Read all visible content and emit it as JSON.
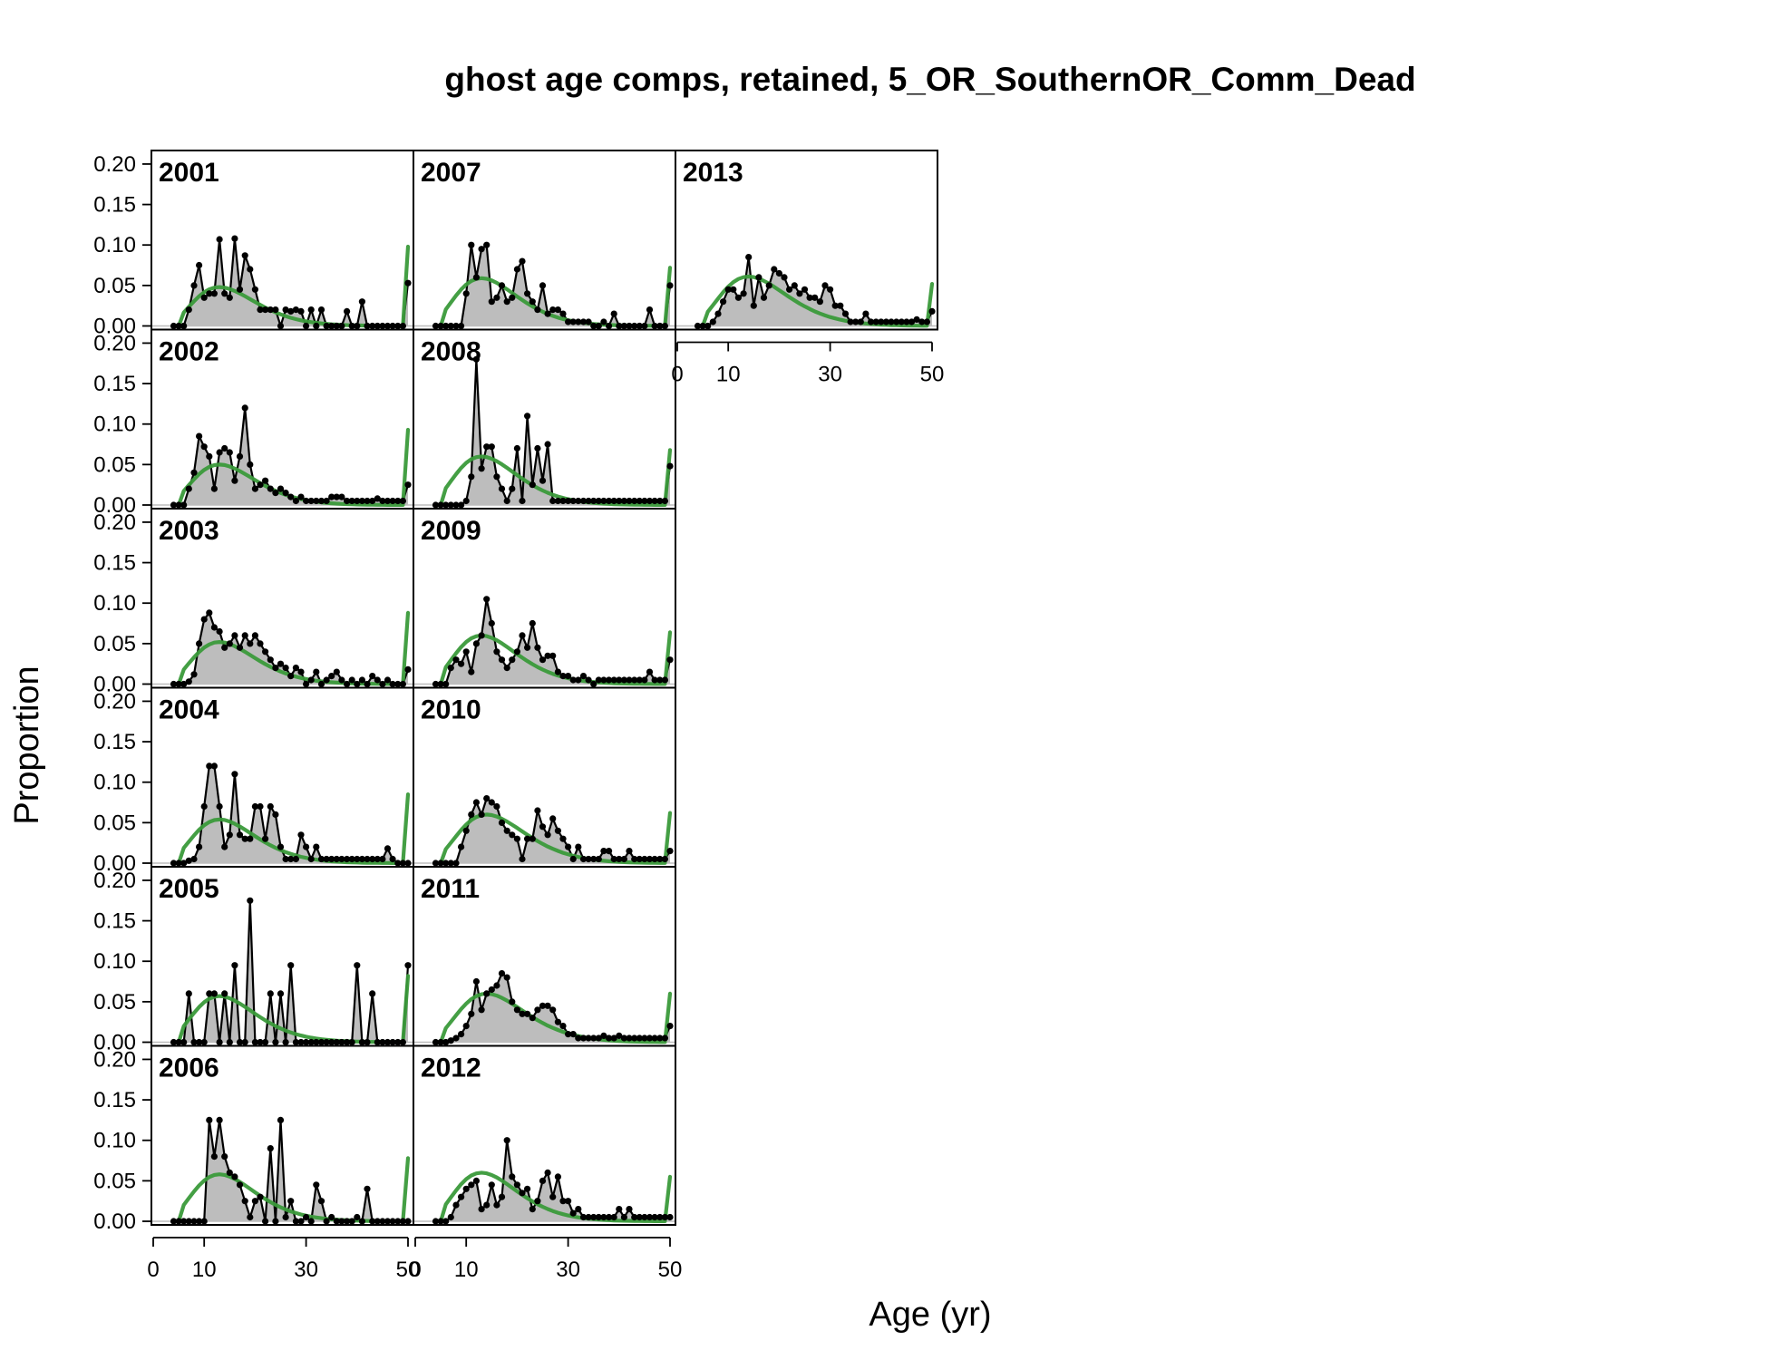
{
  "chart_data": {
    "type": "line",
    "title": "ghost age comps, retained, 5_OR_SouthernOR_Comm_Dead",
    "xlabel": "Age (yr)",
    "ylabel": "Proportion",
    "xlim": [
      0,
      50
    ],
    "ylim": [
      0,
      0.21
    ],
    "x_ticks": [
      0,
      10,
      30,
      50
    ],
    "x_tick_labels": [
      "0",
      "10",
      "30",
      "50"
    ],
    "y_ticks": [
      0,
      0.05,
      0.1,
      0.15,
      0.2
    ],
    "y_tick_labels": [
      "0.00",
      "0.05",
      "0.10",
      "0.15",
      "0.20"
    ],
    "ages": [
      4,
      5,
      6,
      7,
      8,
      9,
      10,
      11,
      12,
      13,
      14,
      15,
      16,
      17,
      18,
      19,
      20,
      21,
      22,
      23,
      24,
      25,
      26,
      27,
      28,
      29,
      30,
      31,
      32,
      33,
      34,
      35,
      36,
      37,
      38,
      39,
      40,
      41,
      42,
      43,
      44,
      45,
      46,
      47,
      48,
      49,
      50
    ],
    "expected_shape": "Fitted (green) curve rises from about age 7, peaks near age 13 then declines toward age 49, with a sharp plus-group spike at age 50.",
    "series_colors": {
      "observed_fill": "#bdbdbd",
      "observed_line": "#000000",
      "expected": "#3a9a3a"
    },
    "panels": [
      {
        "year": "2001",
        "col": 0,
        "row": 0,
        "peak_age": 13,
        "exp_peak": 0.048,
        "exp_plus": 0.098,
        "observed": [
          0,
          0,
          0,
          0.02,
          0.05,
          0.075,
          0.035,
          0.04,
          0.04,
          0.107,
          0.04,
          0.035,
          0.108,
          0.045,
          0.087,
          0.07,
          0.045,
          0.02,
          0.02,
          0.02,
          0.02,
          0,
          0.02,
          0.018,
          0.02,
          0.018,
          0,
          0.02,
          0,
          0.02,
          0,
          0,
          0,
          0,
          0.018,
          0,
          0,
          0.03,
          0,
          0,
          0,
          0,
          0,
          0,
          0,
          0,
          0.053
        ]
      },
      {
        "year": "2002",
        "col": 0,
        "row": 1,
        "peak_age": 13,
        "exp_peak": 0.05,
        "exp_plus": 0.093,
        "observed": [
          0,
          0,
          0,
          0.02,
          0.04,
          0.085,
          0.072,
          0.06,
          0.02,
          0.065,
          0.07,
          0.065,
          0.03,
          0.06,
          0.12,
          0.05,
          0.02,
          0.025,
          0.03,
          0.02,
          0.015,
          0.02,
          0.015,
          0.01,
          0.005,
          0.01,
          0.005,
          0.005,
          0.005,
          0.005,
          0.005,
          0.01,
          0.01,
          0.01,
          0.005,
          0.005,
          0.005,
          0.005,
          0.005,
          0.005,
          0.008,
          0.005,
          0.005,
          0.005,
          0.005,
          0.005,
          0.025
        ]
      },
      {
        "year": "2003",
        "col": 0,
        "row": 2,
        "peak_age": 13,
        "exp_peak": 0.052,
        "exp_plus": 0.088,
        "observed": [
          0,
          0,
          0,
          0.003,
          0.012,
          0.05,
          0.08,
          0.088,
          0.07,
          0.065,
          0.045,
          0.05,
          0.06,
          0.045,
          0.06,
          0.05,
          0.06,
          0.05,
          0.04,
          0.03,
          0.02,
          0.025,
          0.02,
          0.01,
          0.02,
          0.015,
          0,
          0.005,
          0.015,
          0,
          0.005,
          0.01,
          0.015,
          0.005,
          0,
          0.005,
          0,
          0.005,
          0,
          0.01,
          0.005,
          0,
          0.005,
          0,
          0,
          0,
          0.018
        ]
      },
      {
        "year": "2004",
        "col": 0,
        "row": 3,
        "peak_age": 13,
        "exp_peak": 0.054,
        "exp_plus": 0.085,
        "observed": [
          0,
          0,
          0,
          0.003,
          0.005,
          0.02,
          0.07,
          0.12,
          0.12,
          0.07,
          0.02,
          0.035,
          0.11,
          0.035,
          0.03,
          0.03,
          0.07,
          0.07,
          0.03,
          0.07,
          0.06,
          0.02,
          0.005,
          0.005,
          0.005,
          0.035,
          0.02,
          0.005,
          0.02,
          0.005,
          0.005,
          0.005,
          0.005,
          0.005,
          0.005,
          0.005,
          0.005,
          0.005,
          0.005,
          0.005,
          0.005,
          0.005,
          0.018,
          0.005,
          0,
          0,
          0
        ]
      },
      {
        "year": "2005",
        "col": 0,
        "row": 4,
        "peak_age": 13,
        "exp_peak": 0.057,
        "exp_plus": 0.082,
        "observed": [
          0,
          0,
          0,
          0.06,
          0,
          0,
          0,
          0.06,
          0.06,
          0,
          0.06,
          0,
          0.095,
          0,
          0,
          0.175,
          0,
          0,
          0,
          0.06,
          0,
          0.06,
          0,
          0.095,
          0,
          0,
          0,
          0,
          0,
          0,
          0,
          0,
          0,
          0,
          0,
          0,
          0.095,
          0,
          0,
          0.06,
          0,
          0,
          0,
          0,
          0,
          0,
          0.095
        ]
      },
      {
        "year": "2006",
        "col": 0,
        "row": 5,
        "peak_age": 13,
        "exp_peak": 0.058,
        "exp_plus": 0.078,
        "observed": [
          0,
          0,
          0,
          0,
          0,
          0,
          0,
          0.125,
          0.08,
          0.125,
          0.08,
          0.06,
          0.055,
          0.045,
          0.025,
          0.005,
          0.025,
          0.03,
          0,
          0.09,
          0,
          0.125,
          0.005,
          0.025,
          0,
          0,
          0.005,
          0,
          0.045,
          0.025,
          0,
          0.005,
          0,
          0,
          0,
          0,
          0.005,
          0,
          0.04,
          0,
          0,
          0,
          0,
          0,
          0,
          0,
          0
        ]
      },
      {
        "year": "2007",
        "col": 1,
        "row": 0,
        "peak_age": 13,
        "exp_peak": 0.059,
        "exp_plus": 0.072,
        "observed": [
          0,
          0,
          0,
          0,
          0,
          0,
          0.04,
          0.1,
          0.06,
          0.095,
          0.1,
          0.03,
          0.035,
          0.05,
          0.03,
          0.035,
          0.07,
          0.08,
          0.04,
          0.03,
          0.02,
          0.05,
          0.015,
          0.02,
          0.02,
          0.015,
          0.005,
          0.005,
          0.005,
          0.005,
          0.005,
          0,
          0,
          0.005,
          0,
          0.015,
          0,
          0,
          0,
          0,
          0,
          0,
          0.02,
          0,
          0,
          0,
          0.05
        ]
      },
      {
        "year": "2008",
        "col": 1,
        "row": 1,
        "peak_age": 13,
        "exp_peak": 0.06,
        "exp_plus": 0.068,
        "observed": [
          0,
          0,
          0,
          0,
          0,
          0,
          0.005,
          0.035,
          0.18,
          0.045,
          0.072,
          0.072,
          0.035,
          0.02,
          0.005,
          0.02,
          0.07,
          0.005,
          0.11,
          0.025,
          0.07,
          0.03,
          0.075,
          0.005,
          0.005,
          0.005,
          0.005,
          0.005,
          0.005,
          0.005,
          0.005,
          0.005,
          0.005,
          0.005,
          0.005,
          0.005,
          0.005,
          0.005,
          0.005,
          0.005,
          0.005,
          0.005,
          0.005,
          0.005,
          0.005,
          0.005,
          0.048
        ]
      },
      {
        "year": "2009",
        "col": 1,
        "row": 2,
        "peak_age": 13,
        "exp_peak": 0.06,
        "exp_plus": 0.064,
        "observed": [
          0,
          0,
          0,
          0.02,
          0.03,
          0.025,
          0.04,
          0.015,
          0.05,
          0.06,
          0.105,
          0.075,
          0.04,
          0.03,
          0.02,
          0.03,
          0.04,
          0.06,
          0.045,
          0.075,
          0.045,
          0.03,
          0.035,
          0.035,
          0.015,
          0.01,
          0.01,
          0.005,
          0.005,
          0.01,
          0.005,
          0,
          0.005,
          0.005,
          0.005,
          0.005,
          0.005,
          0.005,
          0.005,
          0.005,
          0.005,
          0.005,
          0.015,
          0.005,
          0.005,
          0.005,
          0.03
        ]
      },
      {
        "year": "2010",
        "col": 1,
        "row": 3,
        "peak_age": 14,
        "exp_peak": 0.06,
        "exp_plus": 0.062,
        "observed": [
          0,
          0,
          0,
          0,
          0,
          0.02,
          0.04,
          0.06,
          0.075,
          0.06,
          0.08,
          0.075,
          0.07,
          0.05,
          0.04,
          0.035,
          0.03,
          0.005,
          0.03,
          0.03,
          0.065,
          0.045,
          0.035,
          0.055,
          0.04,
          0.03,
          0.02,
          0.005,
          0.02,
          0.005,
          0.005,
          0.005,
          0.005,
          0.015,
          0.015,
          0.005,
          0.005,
          0.005,
          0.015,
          0.005,
          0.005,
          0.005,
          0.005,
          0.005,
          0.005,
          0.005,
          0.015
        ]
      },
      {
        "year": "2011",
        "col": 1,
        "row": 4,
        "peak_age": 14,
        "exp_peak": 0.06,
        "exp_plus": 0.06,
        "observed": [
          0,
          0,
          0,
          0.002,
          0.005,
          0.01,
          0.02,
          0.035,
          0.075,
          0.04,
          0.06,
          0.065,
          0.07,
          0.085,
          0.08,
          0.05,
          0.04,
          0.035,
          0.035,
          0.03,
          0.04,
          0.045,
          0.045,
          0.04,
          0.025,
          0.02,
          0.01,
          0.01,
          0.005,
          0.005,
          0.005,
          0.005,
          0.005,
          0.008,
          0.005,
          0.005,
          0.008,
          0.005,
          0.005,
          0.005,
          0.005,
          0.005,
          0.005,
          0.005,
          0.005,
          0.005,
          0.02
        ]
      },
      {
        "year": "2012",
        "col": 1,
        "row": 5,
        "peak_age": 13,
        "exp_peak": 0.06,
        "exp_plus": 0.055,
        "observed": [
          0,
          0,
          0,
          0.005,
          0.02,
          0.03,
          0.04,
          0.045,
          0.05,
          0.015,
          0.02,
          0.045,
          0.02,
          0.03,
          0.1,
          0.055,
          0.045,
          0.035,
          0.04,
          0.015,
          0.025,
          0.05,
          0.06,
          0.03,
          0.055,
          0.025,
          0.025,
          0.01,
          0.015,
          0.005,
          0.005,
          0.005,
          0.005,
          0.005,
          0.005,
          0.005,
          0.015,
          0.005,
          0.015,
          0.005,
          0.005,
          0.005,
          0.005,
          0.005,
          0.005,
          0.005,
          0.005
        ]
      },
      {
        "year": "2013",
        "col": 2,
        "row": 0,
        "peak_age": 14,
        "exp_peak": 0.061,
        "exp_plus": 0.052,
        "observed": [
          0,
          0,
          0,
          0.005,
          0.015,
          0.03,
          0.045,
          0.045,
          0.035,
          0.04,
          0.085,
          0.025,
          0.06,
          0.035,
          0.05,
          0.07,
          0.065,
          0.06,
          0.045,
          0.05,
          0.04,
          0.045,
          0.035,
          0.035,
          0.03,
          0.05,
          0.045,
          0.025,
          0.025,
          0.015,
          0.005,
          0.005,
          0.005,
          0.015,
          0.005,
          0.005,
          0.005,
          0.005,
          0.005,
          0.005,
          0.005,
          0.005,
          0.005,
          0.008,
          0.005,
          0.005,
          0.018
        ]
      }
    ]
  }
}
